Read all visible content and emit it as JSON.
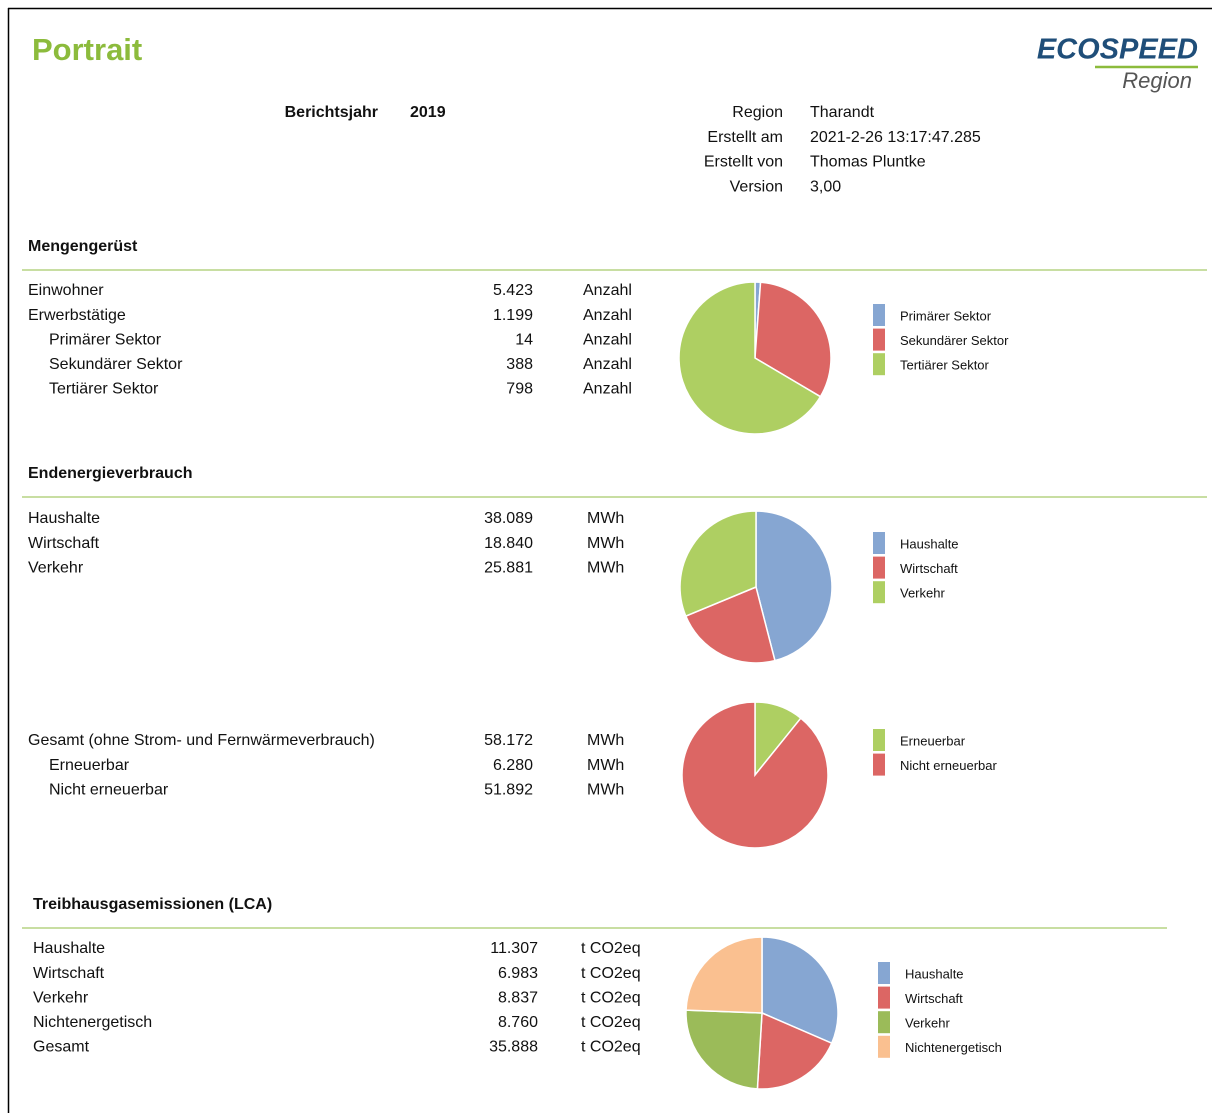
{
  "header": {
    "title": "Portrait",
    "logo": "ECOSPEED",
    "logo_sub": "Region",
    "year_label": "Berichtsjahr",
    "year": "2019",
    "meta": [
      {
        "label": "Region",
        "value": "Tharandt"
      },
      {
        "label": "Erstellt am",
        "value": "2021-2-26 13:17:47.285"
      },
      {
        "label": "Erstellt von",
        "value": "Thomas Pluntke"
      },
      {
        "label": "Version",
        "value": "3,00"
      }
    ]
  },
  "sections": [
    {
      "title": "Mengengerüst",
      "blocks": [
        {
          "rows": [
            {
              "label": "Einwohner",
              "value": "5.423",
              "unit": "Anzahl"
            },
            {
              "label": "Erwerbstätige",
              "value": "1.199",
              "unit": "Anzahl"
            },
            {
              "label": "Primärer Sektor",
              "value": "14",
              "unit": "Anzahl",
              "indent": true
            },
            {
              "label": "Sekundärer Sektor",
              "value": "388",
              "unit": "Anzahl",
              "indent": true
            },
            {
              "label": "Tertiärer Sektor",
              "value": "798",
              "unit": "Anzahl",
              "indent": true
            }
          ]
        }
      ]
    },
    {
      "title": "Endenergieverbrauch",
      "blocks": [
        {
          "rows": [
            {
              "label": "Haushalte",
              "value": "38.089",
              "unit": "MWh"
            },
            {
              "label": "Wirtschaft",
              "value": "18.840",
              "unit": "MWh"
            },
            {
              "label": "Verkehr",
              "value": "25.881",
              "unit": "MWh"
            }
          ]
        },
        {
          "rows": [
            {
              "label": "Gesamt (ohne Strom- und Fernwärmeverbrauch)",
              "value": "58.172",
              "unit": "MWh"
            },
            {
              "label": "Erneuerbar",
              "value": "6.280",
              "unit": "MWh",
              "indent": true
            },
            {
              "label": "Nicht erneuerbar",
              "value": "51.892",
              "unit": "MWh",
              "indent": true
            }
          ]
        }
      ]
    },
    {
      "title": "Treibhausgasemissionen (LCA)",
      "blocks": [
        {
          "rows": [
            {
              "label": "Haushalte",
              "value": "11.307",
              "unit": "t CO2eq"
            },
            {
              "label": "Wirtschaft",
              "value": "6.983",
              "unit": "t CO2eq"
            },
            {
              "label": "Verkehr",
              "value": "8.837",
              "unit": "t CO2eq"
            },
            {
              "label": "Nichtenergetisch",
              "value": "8.760",
              "unit": "t CO2eq"
            },
            {
              "label": "Gesamt",
              "value": "35.888",
              "unit": "t CO2eq"
            }
          ]
        }
      ]
    }
  ],
  "chart_data": [
    {
      "type": "pie",
      "categories": [
        "Primärer Sektor",
        "Sekundärer Sektor",
        "Tertiärer Sektor"
      ],
      "values": [
        14,
        388,
        798
      ],
      "colors": [
        "#86a6d2",
        "#dc6664",
        "#aecf62"
      ]
    },
    {
      "type": "pie",
      "categories": [
        "Haushalte",
        "Wirtschaft",
        "Verkehr"
      ],
      "values": [
        38089,
        18840,
        25881
      ],
      "colors": [
        "#86a6d2",
        "#dc6664",
        "#aecf62"
      ]
    },
    {
      "type": "pie",
      "categories": [
        "Erneuerbar",
        "Nicht erneuerbar"
      ],
      "values": [
        6280,
        51892
      ],
      "colors": [
        "#aecf62",
        "#dc6664"
      ]
    },
    {
      "type": "pie",
      "categories": [
        "Haushalte",
        "Wirtschaft",
        "Verkehr",
        "Nichtenergetisch"
      ],
      "values": [
        11307,
        6983,
        8837,
        8760
      ],
      "colors": [
        "#86a6d2",
        "#dc6664",
        "#9bbb59",
        "#fac090"
      ]
    }
  ]
}
